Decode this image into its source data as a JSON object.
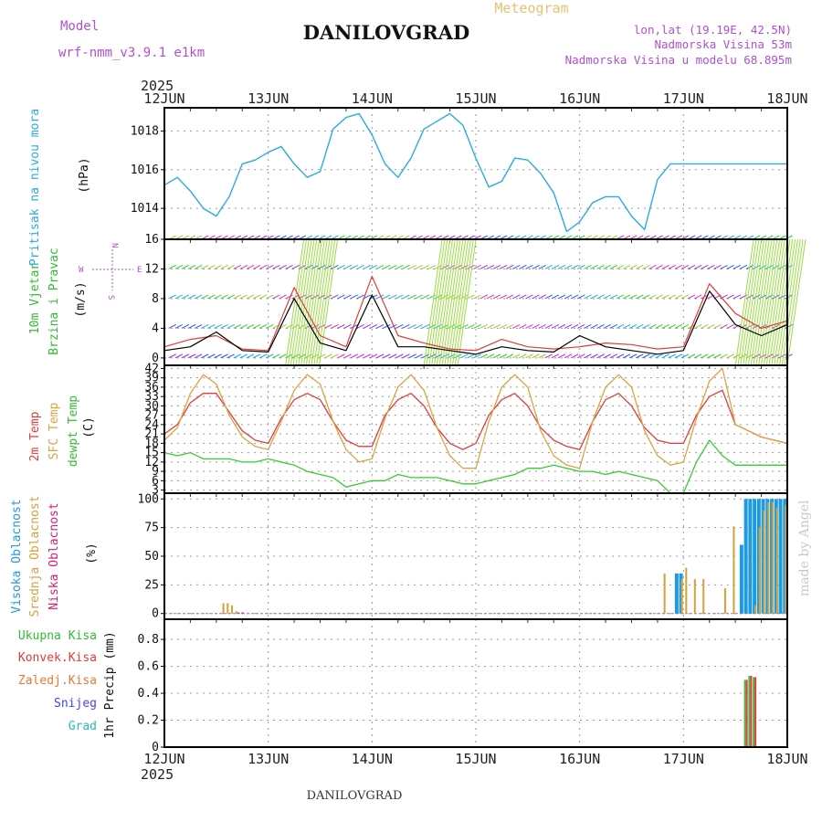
{
  "header": {
    "model_label": "Model",
    "model_name": "wrf-nmm_v3.9.1  e1km",
    "city": "DANILOVGRAD",
    "meteogram": "Meteogram",
    "lonlat": "lon,lat (19.19E, 42.5N)",
    "altitude": "Nadmorska Visina 53m",
    "model_altitude": "Nadmorska Visina u modelu 68.895m",
    "year_top": "2025",
    "year_bottom": "2025",
    "footer_city": "DANILOVGRAD",
    "credit": "made by Angel"
  },
  "time_axis": {
    "labels": [
      "12JUN",
      "13JUN",
      "14JUN",
      "15JUN",
      "16JUN",
      "17JUN",
      "18JUN"
    ]
  },
  "panels": {
    "pressure": {
      "ylabel_1": "Pritisak na nivou mora",
      "unit": "(hPa)"
    },
    "wind": {
      "ylabel_1": "10m Vjetar",
      "ylabel_2": "Brzina i Pravac",
      "unit": "(m/s)",
      "compass_n": "N",
      "compass_w": "W",
      "compass_e": "E",
      "compass_s": "S"
    },
    "temp": {
      "ylabel_1": "2m Temp",
      "ylabel_2": "SFC Temp",
      "ylabel_3": "dewpt Temp",
      "unit": "(C)"
    },
    "cloud": {
      "ylabel_1": "Visoka Oblacnost",
      "ylabel_2": "Srednja Oblacnost",
      "ylabel_3": "Niska Oblacnost",
      "unit": "(%)"
    },
    "precip": {
      "ylabel_1": "Ukupna Kisa",
      "ylabel_2": "Konvek.Kisa",
      "ylabel_3": "Zaledj.Kisa",
      "ylabel_4": "Snijeg",
      "ylabel_5": "Grad",
      "unit": "1hr Precip (mm)"
    }
  },
  "colors": {
    "pressure": "#29abe2",
    "temp_2m": "#e03c3c",
    "temp_sfc": "#d9a441",
    "dewpoint": "#33cc33",
    "cloud_high": "#1e9be0",
    "cloud_mid": "#d4a23a",
    "cloud_low": "#d4207a",
    "precip_total": "#44bb44",
    "precip_conv": "#e03c3c",
    "precip_frz": "#ee7733",
    "snow": "#4444ee",
    "hail": "#22bbbb",
    "wind_gust": "#e03c3c",
    "wind_speed": "#000000"
  },
  "chart_data": [
    {
      "type": "line",
      "title": "Pritisak na nivou mora",
      "ylabel": "(hPa)",
      "ylim": [
        1012.4,
        1019.2
      ],
      "yticks": [
        1014,
        1016,
        1018
      ],
      "x_hours": [
        0,
        3,
        6,
        9,
        12,
        15,
        18,
        21,
        24,
        27,
        30,
        33,
        36,
        39,
        42,
        45,
        48,
        51,
        54,
        57,
        60,
        63,
        66,
        69,
        72,
        75,
        78,
        81,
        84,
        87,
        90,
        93,
        96,
        99,
        102,
        105,
        108,
        111,
        114,
        117,
        120,
        123,
        126,
        129,
        132,
        135,
        138,
        141,
        144
      ],
      "series": [
        {
          "name": "Pritisak na nivou mora",
          "values": [
            1015.2,
            1015.6,
            1014.9,
            1014.0,
            1013.6,
            1014.6,
            1016.3,
            1016.5,
            1016.9,
            1017.2,
            1016.3,
            1015.6,
            1015.9,
            1018.1,
            1018.7,
            1018.9,
            1017.8,
            1016.3,
            1015.6,
            1016.6,
            1018.1,
            1018.5,
            1018.9,
            1018.3,
            1016.6,
            1015.1,
            1015.4,
            1016.6,
            1016.5,
            1015.8,
            1014.8,
            1012.8,
            1013.3,
            1014.3,
            1014.6,
            1014.6,
            1013.6,
            1012.9,
            1015.5,
            1016.3,
            1016.3,
            1016.3,
            1016.3,
            1016.3,
            1016.3,
            1016.3,
            1016.3,
            1016.3,
            1016.3
          ]
        }
      ]
    },
    {
      "type": "line",
      "title": "10m Vjetar Brzina i Pravac",
      "ylabel": "(m/s)",
      "ylim": [
        -1,
        16
      ],
      "yticks": [
        0,
        4,
        8,
        12,
        16
      ],
      "x_hours": [
        0,
        6,
        12,
        18,
        24,
        30,
        36,
        42,
        48,
        54,
        60,
        66,
        72,
        78,
        84,
        90,
        96,
        102,
        108,
        114,
        120,
        126,
        132,
        138,
        144
      ],
      "series": [
        {
          "name": "gust",
          "values": [
            1.5,
            2.5,
            3.0,
            1.2,
            1.0,
            9.5,
            3.0,
            1.5,
            11.0,
            3.0,
            2.0,
            1.2,
            1.0,
            2.5,
            1.5,
            1.2,
            1.5,
            2.0,
            1.8,
            1.2,
            1.5,
            10.0,
            6.0,
            4.0,
            5.0
          ]
        },
        {
          "name": "speed",
          "values": [
            1.0,
            1.5,
            3.5,
            1.0,
            0.8,
            8.0,
            2.0,
            1.0,
            8.5,
            1.5,
            1.5,
            1.0,
            0.5,
            1.5,
            1.0,
            0.8,
            3.0,
            1.5,
            1.0,
            0.5,
            1.0,
            9.0,
            4.5,
            3.0,
            4.5
          ]
        }
      ]
    },
    {
      "type": "line",
      "title": "2m Temp / SFC Temp / dewpt Temp",
      "ylabel": "(C)",
      "ylim": [
        2,
        43
      ],
      "yticks": [
        3,
        6,
        9,
        12,
        15,
        18,
        21,
        24,
        27,
        30,
        33,
        36,
        39,
        42
      ],
      "x_hours": [
        0,
        3,
        6,
        9,
        12,
        15,
        18,
        21,
        24,
        27,
        30,
        33,
        36,
        39,
        42,
        45,
        48,
        51,
        54,
        57,
        60,
        63,
        66,
        69,
        72,
        75,
        78,
        81,
        84,
        87,
        90,
        93,
        96,
        99,
        102,
        105,
        108,
        111,
        114,
        117,
        120,
        123,
        126,
        129,
        132,
        135,
        138,
        141,
        144
      ],
      "series": [
        {
          "name": "2m Temp",
          "values": [
            21,
            24,
            31,
            34,
            34,
            28,
            22,
            19,
            18,
            26,
            32,
            34,
            32,
            25,
            19,
            17,
            17,
            27,
            32,
            34,
            30,
            23,
            18,
            16,
            18,
            27,
            32,
            34,
            30,
            23,
            19,
            17,
            16,
            25,
            32,
            34,
            30,
            23,
            19,
            18,
            18,
            27,
            33,
            35,
            24,
            22,
            20,
            19,
            18
          ]
        },
        {
          "name": "SFC Temp",
          "values": [
            19,
            23,
            34,
            40,
            37,
            27,
            20,
            17,
            16,
            25,
            35,
            40,
            37,
            25,
            16,
            12,
            13,
            26,
            36,
            40,
            35,
            23,
            14,
            10,
            10,
            25,
            36,
            40,
            36,
            22,
            14,
            11,
            10,
            25,
            36,
            40,
            36,
            22,
            14,
            11,
            12,
            26,
            38,
            42,
            24,
            22,
            20,
            19,
            18
          ]
        },
        {
          "name": "dewpt Temp",
          "values": [
            15,
            14,
            15,
            13,
            13,
            13,
            12,
            12,
            13,
            12,
            11,
            9,
            8,
            7,
            4,
            5,
            6,
            6,
            8,
            7,
            7,
            7,
            6,
            5,
            5,
            6,
            7,
            8,
            10,
            10,
            11,
            10,
            9,
            9,
            8,
            9,
            8,
            7,
            6,
            2,
            2,
            12,
            19,
            14,
            11,
            11,
            11,
            11,
            11
          ]
        }
      ]
    },
    {
      "type": "bar",
      "title": "Visoka / Srednja / Niska Oblacnost",
      "ylabel": "(%)",
      "ylim": [
        -5,
        105
      ],
      "yticks": [
        0,
        25,
        50,
        75,
        100
      ],
      "series": [
        {
          "name": "Visoka Oblacnost",
          "x_hours": [
            118,
            119,
            120,
            121,
            122,
            123,
            124,
            133,
            134,
            135,
            136,
            137,
            138,
            139,
            140,
            141,
            142,
            143
          ],
          "values": [
            35,
            35,
            0,
            0,
            0,
            0,
            0,
            60,
            100,
            100,
            100,
            100,
            100,
            100,
            100,
            100,
            100,
            100
          ]
        },
        {
          "name": "Srednja Oblacnost",
          "x_hours": [
            13,
            14,
            15,
            16,
            115,
            119,
            120,
            122,
            124,
            129,
            131,
            136,
            137,
            138,
            139,
            140,
            141,
            142,
            143
          ],
          "values": [
            9,
            9,
            7,
            2,
            35,
            30,
            40,
            30,
            30,
            22,
            76,
            7,
            75,
            90,
            97,
            97,
            92,
            0,
            95
          ]
        },
        {
          "name": "Niska Oblacnost",
          "x_hours": [
            16,
            17
          ],
          "values": [
            1,
            1
          ]
        }
      ]
    },
    {
      "type": "bar",
      "title": "1hr Precip",
      "ylabel": "1hr Precip (mm)",
      "ylim": [
        0,
        0.95
      ],
      "yticks": [
        0,
        0.2,
        0.4,
        0.6,
        0.8
      ],
      "series": [
        {
          "name": "Ukupna Kisa",
          "x_hours": [
            134,
            135,
            136
          ],
          "values": [
            0.5,
            0.53,
            0.52
          ]
        },
        {
          "name": "Konvek.Kisa",
          "x_hours": [
            134,
            135,
            136
          ],
          "values": [
            0.5,
            0.53,
            0.52
          ]
        }
      ]
    }
  ]
}
